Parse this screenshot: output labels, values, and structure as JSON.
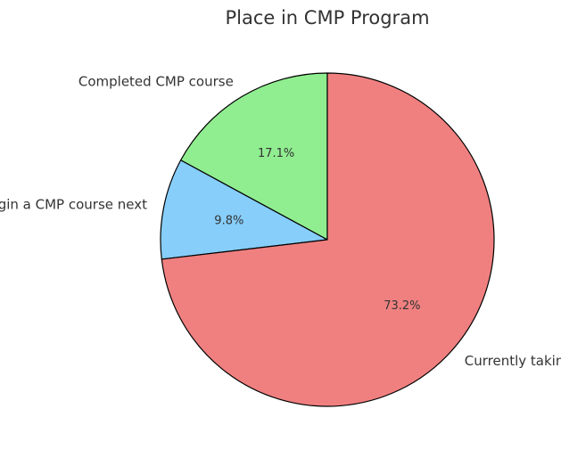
{
  "chart_data": {
    "type": "pie",
    "title": "Place in CMP Program",
    "start_angle_deg": 90,
    "direction": "counterclockwise",
    "edge_color": "#000000",
    "slices": [
      {
        "label": "Completed CMP course",
        "value": 17.1,
        "pct_label": "17.1%",
        "color": "#90ee90"
      },
      {
        "label": "Will begin a CMP course next",
        "value": 9.8,
        "pct_label": "9.8%",
        "color": "#87cefa"
      },
      {
        "label": "Currently taking CMP course",
        "value": 73.2,
        "pct_label": "73.2%",
        "color": "#f08080"
      }
    ]
  }
}
